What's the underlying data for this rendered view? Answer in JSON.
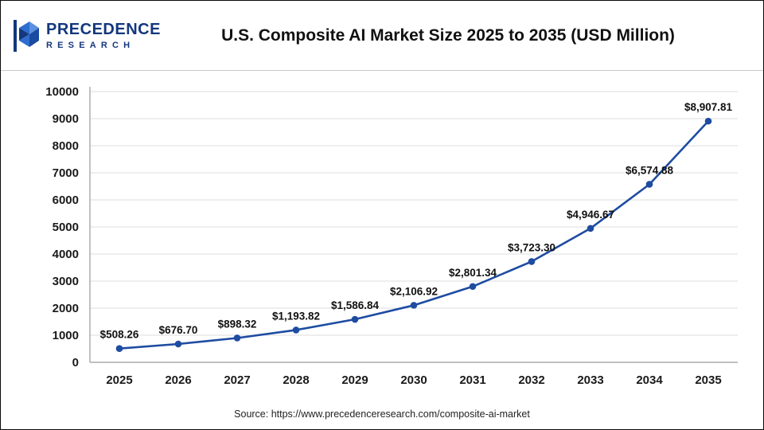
{
  "header": {
    "title": "U.S. Composite AI Market Size 2025 to 2035 (USD Million)",
    "logo": {
      "line1": "PRECEDENCE",
      "line2": "RESEARCH"
    }
  },
  "footer": {
    "source": "Source: https://www.precedenceresearch.com/composite-ai-market"
  },
  "colors": {
    "brand_blue": "#14377d",
    "line_color": "#1e4ca1",
    "marker_color": "#1e4ca1",
    "grid_color": "#dcdcdc",
    "axis_color": "#9a9a9a",
    "tick_label_color": "#1a1a1a",
    "data_label_color": "#111111"
  },
  "chart_data": {
    "type": "line",
    "title": "U.S. Composite AI Market Size 2025 to 2035 (USD Million)",
    "categories": [
      "2025",
      "2026",
      "2027",
      "2028",
      "2029",
      "2030",
      "2031",
      "2032",
      "2033",
      "2034",
      "2035"
    ],
    "values": [
      508.26,
      676.7,
      898.32,
      1193.82,
      1586.84,
      2106.92,
      2801.34,
      3723.3,
      4946.67,
      6574.88,
      8907.81
    ],
    "point_labels": [
      "$508.26",
      "$676.70",
      "$898.32",
      "$1,193.82",
      "$1,586.84",
      "$2,106.92",
      "$2,801.34",
      "$3,723.30",
      "$4,946.67",
      "$6,574.88",
      "$8,907.81"
    ],
    "xlabel": "",
    "ylabel": "",
    "ylim": [
      0,
      10000
    ],
    "yticks": [
      0,
      1000,
      2000,
      3000,
      4000,
      5000,
      6000,
      7000,
      8000,
      9000,
      10000
    ],
    "grid": true,
    "legend": "none"
  }
}
